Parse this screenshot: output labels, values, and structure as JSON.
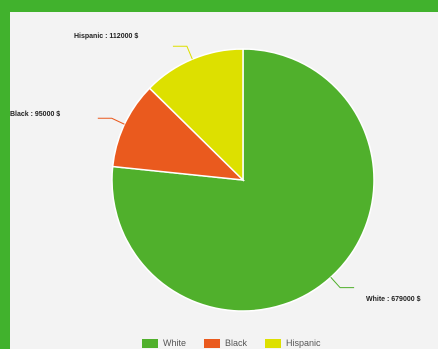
{
  "chart_data": {
    "type": "pie",
    "title": "",
    "categories": [
      "White",
      "Black",
      "Hispanic"
    ],
    "values": [
      679000,
      95000,
      112000
    ],
    "colors": [
      "#50b02c",
      "#ea5a1e",
      "#dde000"
    ],
    "slice_labels": [
      "White : 679000 $",
      "Black : 95000 $",
      "Hispanic : 112000 $"
    ],
    "start_angle_deg": 0,
    "direction": "clockwise",
    "legend_position": "bottom"
  }
}
